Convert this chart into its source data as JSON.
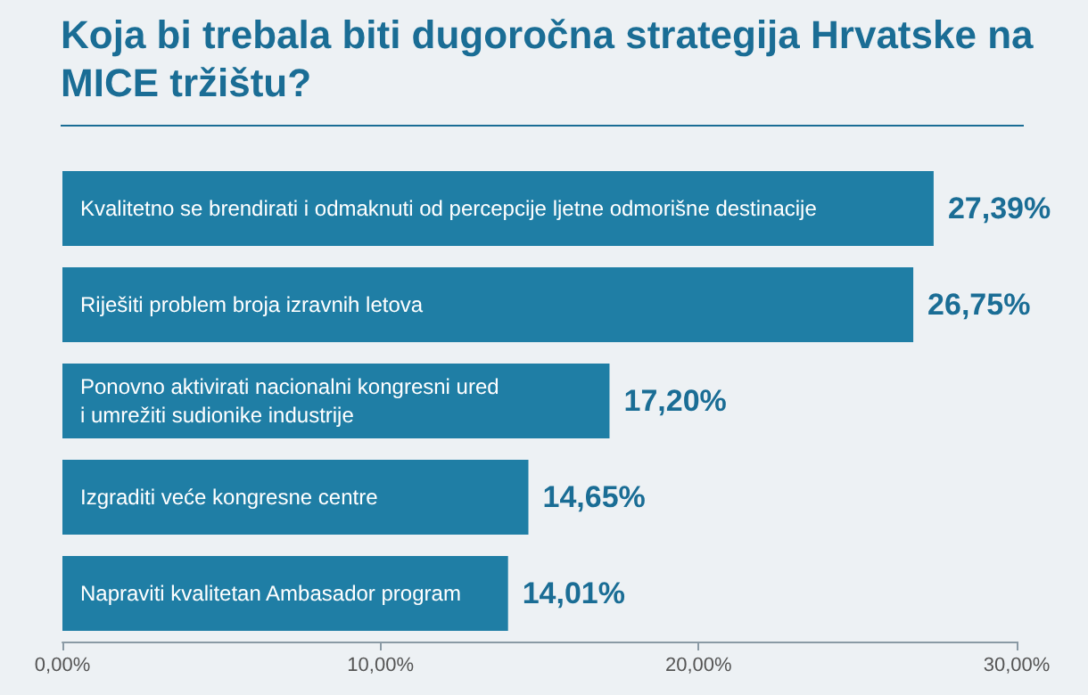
{
  "chart_data": {
    "type": "bar",
    "orientation": "horizontal",
    "title": "Koja bi trebala biti dugoročna strategija Hrvatske na MICE tržištu?",
    "categories": [
      "Kvalitetno se brendirati i odmaknuti od percepcije ljetne odmorišne destinacije",
      "Riješiti problem broja izravnih letova",
      "Ponovno aktivirati nacionalni kongresni ured\ni umrežiti sudionike industrije",
      "Izgraditi veće kongresne centre",
      "Napraviti kvalitetan Ambasador program"
    ],
    "values": [
      27.39,
      26.75,
      17.2,
      14.65,
      14.01
    ],
    "value_labels": [
      "27,39%",
      "26,75%",
      "17,20%",
      "14,65%",
      "14,01%"
    ],
    "color": "#1f7ea5",
    "xlim": [
      0,
      30
    ],
    "xticks": [
      {
        "value": 0,
        "label": "0,00%"
      },
      {
        "value": 10,
        "label": "10,00%"
      },
      {
        "value": 20,
        "label": "20,00%"
      },
      {
        "value": 30,
        "label": "30,00%"
      }
    ],
    "grid": false
  }
}
